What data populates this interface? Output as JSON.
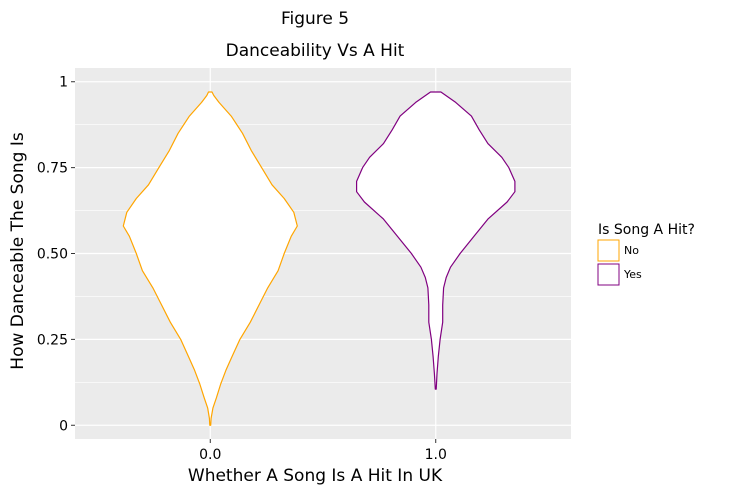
{
  "figure_title": "Figure 5",
  "chart_data": {
    "type": "violin",
    "title": "Danceability Vs A Hit",
    "xlabel": "Whether A Song Is A Hit In UK",
    "ylabel": "How Danceable The Song Is",
    "categories": [
      "0.0",
      "1.0"
    ],
    "ylim": [
      -0.04,
      1.04
    ],
    "y_ticks": [
      0,
      0.25,
      0.5,
      0.75,
      1
    ],
    "y_tick_labels": [
      "0",
      "0.25",
      "0.50",
      "0.75",
      "1"
    ],
    "grid": true,
    "background": "#ebebeb",
    "legend": {
      "title": "Is Song A Hit?",
      "position": "right",
      "entries": [
        {
          "label": "No",
          "color": "#FFA500"
        },
        {
          "label": "Yes",
          "color": "#800080"
        }
      ]
    },
    "series": [
      {
        "name": "No",
        "category": "0.0",
        "color": "#FFA500",
        "density": [
          [
            0.0,
            0.005
          ],
          [
            0.02,
            0.01
          ],
          [
            0.05,
            0.03
          ],
          [
            0.08,
            0.07
          ],
          [
            0.12,
            0.12
          ],
          [
            0.16,
            0.18
          ],
          [
            0.2,
            0.25
          ],
          [
            0.25,
            0.34
          ],
          [
            0.3,
            0.46
          ],
          [
            0.35,
            0.56
          ],
          [
            0.4,
            0.66
          ],
          [
            0.45,
            0.78
          ],
          [
            0.5,
            0.85
          ],
          [
            0.55,
            0.93
          ],
          [
            0.58,
            1.0
          ],
          [
            0.62,
            0.96
          ],
          [
            0.66,
            0.85
          ],
          [
            0.7,
            0.71
          ],
          [
            0.75,
            0.59
          ],
          [
            0.8,
            0.47
          ],
          [
            0.85,
            0.37
          ],
          [
            0.9,
            0.24
          ],
          [
            0.94,
            0.1
          ],
          [
            0.96,
            0.04
          ],
          [
            0.97,
            0.02
          ]
        ]
      },
      {
        "name": "Yes",
        "category": "1.0",
        "color": "#800080",
        "density": [
          [
            0.105,
            0.005
          ],
          [
            0.15,
            0.015
          ],
          [
            0.2,
            0.03
          ],
          [
            0.25,
            0.05
          ],
          [
            0.3,
            0.08
          ],
          [
            0.35,
            0.08
          ],
          [
            0.4,
            0.09
          ],
          [
            0.43,
            0.12
          ],
          [
            0.46,
            0.17
          ],
          [
            0.5,
            0.28
          ],
          [
            0.55,
            0.44
          ],
          [
            0.6,
            0.6
          ],
          [
            0.65,
            0.82
          ],
          [
            0.68,
            0.91
          ],
          [
            0.71,
            0.91
          ],
          [
            0.75,
            0.84
          ],
          [
            0.78,
            0.76
          ],
          [
            0.82,
            0.6
          ],
          [
            0.86,
            0.5
          ],
          [
            0.9,
            0.41
          ],
          [
            0.94,
            0.23
          ],
          [
            0.97,
            0.06
          ]
        ]
      }
    ]
  }
}
